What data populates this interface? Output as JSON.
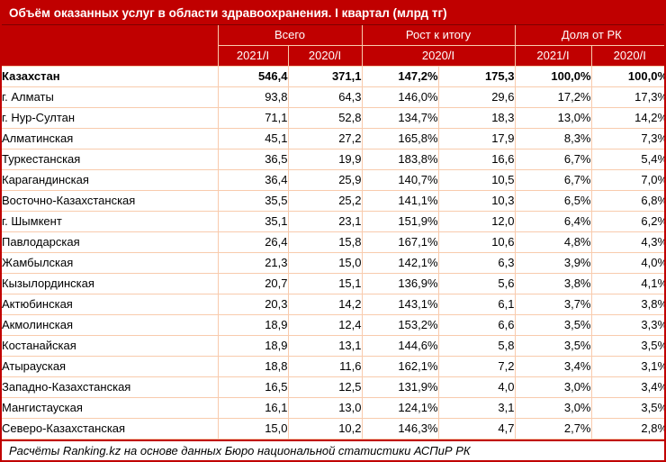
{
  "colors": {
    "accent_dark_red": "#C00000",
    "grid_peach": "#F8CBAD",
    "title_separator": "#7F0000",
    "text": "#000000",
    "header_text": "#FFFFFF"
  },
  "title": "Объём оказанных услуг в области здравоохранения. I квартал (млрд тг)",
  "header": {
    "group_total": "Всего",
    "group_growth": "Рост к итогу",
    "group_share": "Доля от РК",
    "col_2021": "2021/I",
    "col_2020": "2020/I",
    "growth_sub": "2020/I"
  },
  "rows": [
    {
      "region": "Казахстан",
      "total_2021": "546,4",
      "total_2020": "371,1",
      "growth_pct": "147,2%",
      "growth_abs": "175,3",
      "share_2021": "100,0%",
      "share_2020": "100,0%",
      "bold": true
    },
    {
      "region": "г. Алматы",
      "total_2021": "93,8",
      "total_2020": "64,3",
      "growth_pct": "146,0%",
      "growth_abs": "29,6",
      "share_2021": "17,2%",
      "share_2020": "17,3%",
      "bold": false
    },
    {
      "region": "г. Нур-Султан",
      "total_2021": "71,1",
      "total_2020": "52,8",
      "growth_pct": "134,7%",
      "growth_abs": "18,3",
      "share_2021": "13,0%",
      "share_2020": "14,2%",
      "bold": false
    },
    {
      "region": "Алматинская",
      "total_2021": "45,1",
      "total_2020": "27,2",
      "growth_pct": "165,8%",
      "growth_abs": "17,9",
      "share_2021": "8,3%",
      "share_2020": "7,3%",
      "bold": false
    },
    {
      "region": "Туркестанская",
      "total_2021": "36,5",
      "total_2020": "19,9",
      "growth_pct": "183,8%",
      "growth_abs": "16,6",
      "share_2021": "6,7%",
      "share_2020": "5,4%",
      "bold": false
    },
    {
      "region": "Карагандинская",
      "total_2021": "36,4",
      "total_2020": "25,9",
      "growth_pct": "140,7%",
      "growth_abs": "10,5",
      "share_2021": "6,7%",
      "share_2020": "7,0%",
      "bold": false
    },
    {
      "region": "Восточно-Казахстанская",
      "total_2021": "35,5",
      "total_2020": "25,2",
      "growth_pct": "141,1%",
      "growth_abs": "10,3",
      "share_2021": "6,5%",
      "share_2020": "6,8%",
      "bold": false
    },
    {
      "region": "г. Шымкент",
      "total_2021": "35,1",
      "total_2020": "23,1",
      "growth_pct": "151,9%",
      "growth_abs": "12,0",
      "share_2021": "6,4%",
      "share_2020": "6,2%",
      "bold": false
    },
    {
      "region": "Павлодарская",
      "total_2021": "26,4",
      "total_2020": "15,8",
      "growth_pct": "167,1%",
      "growth_abs": "10,6",
      "share_2021": "4,8%",
      "share_2020": "4,3%",
      "bold": false
    },
    {
      "region": "Жамбылская",
      "total_2021": "21,3",
      "total_2020": "15,0",
      "growth_pct": "142,1%",
      "growth_abs": "6,3",
      "share_2021": "3,9%",
      "share_2020": "4,0%",
      "bold": false
    },
    {
      "region": "Кызылординская",
      "total_2021": "20,7",
      "total_2020": "15,1",
      "growth_pct": "136,9%",
      "growth_abs": "5,6",
      "share_2021": "3,8%",
      "share_2020": "4,1%",
      "bold": false
    },
    {
      "region": "Актюбинская",
      "total_2021": "20,3",
      "total_2020": "14,2",
      "growth_pct": "143,1%",
      "growth_abs": "6,1",
      "share_2021": "3,7%",
      "share_2020": "3,8%",
      "bold": false
    },
    {
      "region": "Акмолинская",
      "total_2021": "18,9",
      "total_2020": "12,4",
      "growth_pct": "153,2%",
      "growth_abs": "6,6",
      "share_2021": "3,5%",
      "share_2020": "3,3%",
      "bold": false
    },
    {
      "region": "Костанайская",
      "total_2021": "18,9",
      "total_2020": "13,1",
      "growth_pct": "144,6%",
      "growth_abs": "5,8",
      "share_2021": "3,5%",
      "share_2020": "3,5%",
      "bold": false
    },
    {
      "region": "Атырауская",
      "total_2021": "18,8",
      "total_2020": "11,6",
      "growth_pct": "162,1%",
      "growth_abs": "7,2",
      "share_2021": "3,4%",
      "share_2020": "3,1%",
      "bold": false
    },
    {
      "region": "Западно-Казахстанская",
      "total_2021": "16,5",
      "total_2020": "12,5",
      "growth_pct": "131,9%",
      "growth_abs": "4,0",
      "share_2021": "3,0%",
      "share_2020": "3,4%",
      "bold": false
    },
    {
      "region": "Мангистауская",
      "total_2021": "16,1",
      "total_2020": "13,0",
      "growth_pct": "124,1%",
      "growth_abs": "3,1",
      "share_2021": "3,0%",
      "share_2020": "3,5%",
      "bold": false
    },
    {
      "region": "Северо-Казахстанская",
      "total_2021": "15,0",
      "total_2020": "10,2",
      "growth_pct": "146,3%",
      "growth_abs": "4,7",
      "share_2021": "2,7%",
      "share_2020": "2,8%",
      "bold": false
    }
  ],
  "footer": "Расчёты Ranking.kz на основе данных Бюро национальной статистики АСПиР РК",
  "chart_data": {
    "type": "table",
    "title": "Объём оказанных услуг в области здравоохранения. I квартал (млрд тг)",
    "columns": [
      "",
      "Всего 2021/I",
      "Всего 2020/I",
      "Рост к итогу 2020/I (%)",
      "Рост к итогу 2020/I (млрд тг)",
      "Доля от РК 2021/I",
      "Доля от РК 2020/I"
    ],
    "rows": [
      [
        "Казахстан",
        546.4,
        371.1,
        147.2,
        175.3,
        100.0,
        100.0
      ],
      [
        "г. Алматы",
        93.8,
        64.3,
        146.0,
        29.6,
        17.2,
        17.3
      ],
      [
        "г. Нур-Султан",
        71.1,
        52.8,
        134.7,
        18.3,
        13.0,
        14.2
      ],
      [
        "Алматинская",
        45.1,
        27.2,
        165.8,
        17.9,
        8.3,
        7.3
      ],
      [
        "Туркестанская",
        36.5,
        19.9,
        183.8,
        16.6,
        6.7,
        5.4
      ],
      [
        "Карагандинская",
        36.4,
        25.9,
        140.7,
        10.5,
        6.7,
        7.0
      ],
      [
        "Восточно-Казахстанская",
        35.5,
        25.2,
        141.1,
        10.3,
        6.5,
        6.8
      ],
      [
        "г. Шымкент",
        35.1,
        23.1,
        151.9,
        12.0,
        6.4,
        6.2
      ],
      [
        "Павлодарская",
        26.4,
        15.8,
        167.1,
        10.6,
        4.8,
        4.3
      ],
      [
        "Жамбылская",
        21.3,
        15.0,
        142.1,
        6.3,
        3.9,
        4.0
      ],
      [
        "Кызылординская",
        20.7,
        15.1,
        136.9,
        5.6,
        3.8,
        4.1
      ],
      [
        "Актюбинская",
        20.3,
        14.2,
        143.1,
        6.1,
        3.7,
        3.8
      ],
      [
        "Акмолинская",
        18.9,
        12.4,
        153.2,
        6.6,
        3.5,
        3.3
      ],
      [
        "Костанайская",
        18.9,
        13.1,
        144.6,
        5.8,
        3.5,
        3.5
      ],
      [
        "Атырауская",
        18.8,
        11.6,
        162.1,
        7.2,
        3.4,
        3.1
      ],
      [
        "Западно-Казахстанская",
        16.5,
        12.5,
        131.9,
        4.0,
        3.0,
        3.4
      ],
      [
        "Мангистауская",
        16.1,
        13.0,
        124.1,
        3.1,
        3.0,
        3.5
      ],
      [
        "Северо-Казахстанская",
        15.0,
        10.2,
        146.3,
        4.7,
        2.7,
        2.8
      ]
    ],
    "source_note": "Расчёты Ranking.kz на основе данных Бюро национальной статистики АСПиР РК"
  }
}
